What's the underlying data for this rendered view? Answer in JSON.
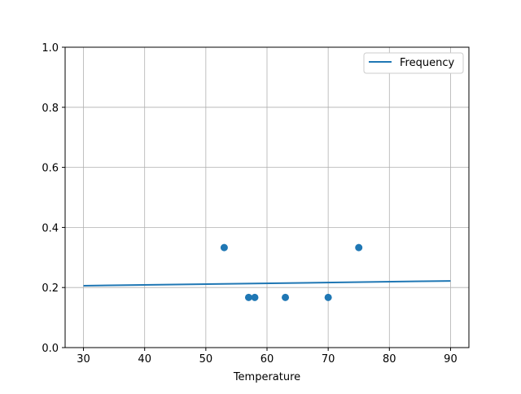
{
  "chart_data": {
    "type": "scatter",
    "xlabel": "Temperature",
    "ylabel": "",
    "title": "",
    "xlim": [
      27,
      93
    ],
    "ylim": [
      0,
      1.0
    ],
    "xticks": [
      "30",
      "40",
      "50",
      "60",
      "70",
      "80",
      "90"
    ],
    "yticks": [
      "0.0",
      "0.2",
      "0.4",
      "0.6",
      "0.8",
      "1.0"
    ],
    "grid": true,
    "legend": {
      "placement": "top-right",
      "entries": [
        "Frequency"
      ]
    },
    "color": "#1f77b4",
    "scatter": {
      "x": [
        53,
        57,
        58,
        63,
        70,
        75
      ],
      "y": [
        0.333,
        0.167,
        0.167,
        0.167,
        0.167,
        0.333
      ]
    },
    "line": {
      "name": "Frequency",
      "x": [
        30,
        90
      ],
      "y": [
        0.206,
        0.222
      ]
    }
  }
}
